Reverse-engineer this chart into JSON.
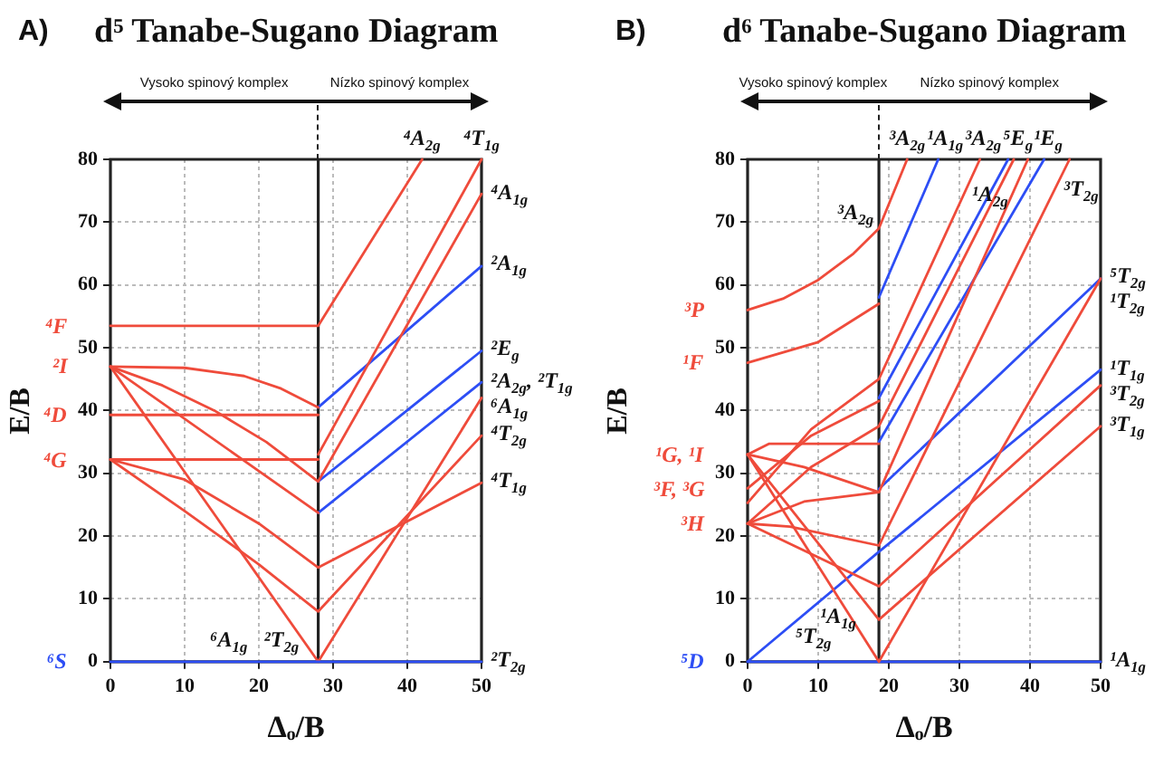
{
  "chart_data": [
    {
      "type": "line",
      "title": "d⁵ Tanabe-Sugano Diagram",
      "xlabel": "Δₒ/B",
      "ylabel": "E/B",
      "xlim": [
        0,
        50
      ],
      "ylim": [
        0,
        80
      ],
      "xticks": [
        0,
        10,
        20,
        30,
        40,
        50
      ],
      "yticks": [
        0,
        10,
        20,
        30,
        40,
        50,
        60,
        70,
        80
      ],
      "grid": true,
      "marker": "none",
      "ref_lines": [
        {
          "axis": "x",
          "value": 28
        }
      ],
      "series": [
        {
          "color": "#ef4b3b",
          "x": [
            0,
            28,
            42
          ],
          "values": [
            53.5,
            53.5,
            80
          ]
        },
        {
          "color": "#ef4b3b",
          "x": [
            0,
            28
          ],
          "values": [
            39.3,
            39.3
          ]
        },
        {
          "color": "#ef4b3b",
          "x": [
            0,
            28
          ],
          "values": [
            32.2,
            32.2
          ]
        },
        {
          "color": "#2d4ef5",
          "x": [
            0,
            50
          ],
          "values": [
            0,
            0
          ]
        },
        {
          "color": "#ef4b3b",
          "x": [
            0,
            10,
            18,
            23,
            28
          ],
          "values": [
            47,
            46.8,
            45.5,
            43.5,
            40.5
          ]
        },
        {
          "color": "#ef4b3b",
          "x": [
            0,
            7,
            14,
            21,
            28,
            50
          ],
          "values": [
            47,
            44,
            40,
            35,
            28.7,
            74.5
          ]
        },
        {
          "color": "#ef4b3b",
          "x": [
            0,
            28
          ],
          "values": [
            47,
            23.7
          ]
        },
        {
          "color": "#ef4b3b",
          "x": [
            0,
            28,
            50
          ],
          "values": [
            47,
            0,
            42
          ]
        },
        {
          "color": "#ef4b3b",
          "x": [
            0,
            10,
            20,
            28,
            50
          ],
          "values": [
            32.2,
            29,
            22,
            15,
            28.5
          ]
        },
        {
          "color": "#ef4b3b",
          "x": [
            0,
            10,
            20,
            28,
            50
          ],
          "values": [
            32.2,
            24,
            15.5,
            8,
            36
          ]
        },
        {
          "color": "#ef4b3b",
          "x": [
            28,
            50
          ],
          "values": [
            33,
            80
          ]
        },
        {
          "color": "#2d4ef5",
          "x": [
            28,
            50
          ],
          "values": [
            40.5,
            63
          ]
        },
        {
          "color": "#2d4ef5",
          "x": [
            28,
            50
          ],
          "values": [
            28.7,
            49.5
          ]
        },
        {
          "color": "#2d4ef5",
          "x": [
            28,
            50
          ],
          "values": [
            23.7,
            44.5
          ]
        }
      ],
      "annotations": [
        "A)",
        "Vysoko spinový komplex",
        "Nízko spinový komplex",
        {
          "text": "⁴A$_{2g}$",
          "x": 42,
          "y": 80
        },
        {
          "text": "⁴T$_{1g}$",
          "x": 50,
          "y": 80
        },
        {
          "text": "⁴A$_{1g}$",
          "x": 50,
          "y": 74.5
        },
        {
          "text": "²A$_{1g}$",
          "x": 50,
          "y": 63
        },
        {
          "text": "²E$_{g}$",
          "x": 50,
          "y": 49.5
        },
        {
          "text": "²A$_{2g}$, ²T$_{1g}$",
          "x": 50,
          "y": 44.5
        },
        {
          "text": "⁶A$_{1g}$",
          "x": 50,
          "y": 42
        },
        {
          "text": "⁴T$_{2g}$",
          "x": 50,
          "y": 36
        },
        {
          "text": "⁴T$_{1g}$",
          "x": 50,
          "y": 28.5
        },
        {
          "text": "²T$_{2g}$",
          "x": 50,
          "y": 0
        },
        {
          "text": "⁴F",
          "x": 0,
          "y": 53.5
        },
        {
          "text": "²I",
          "x": 0,
          "y": 47
        },
        {
          "text": "⁴D",
          "x": 0,
          "y": 39.3
        },
        {
          "text": "⁴G",
          "x": 0,
          "y": 32.2
        },
        {
          "text": "⁶S",
          "x": 0,
          "y": 0
        },
        {
          "text": "⁶A$_{1g}$",
          "x": 16,
          "y": 0
        },
        {
          "text": "²T$_{2g}$",
          "x": 23,
          "y": 0
        }
      ]
    },
    {
      "type": "line",
      "title": "d⁶ Tanabe-Sugano Diagram",
      "xlabel": "Δₒ/B",
      "ylabel": "E/B",
      "xlim": [
        0,
        50
      ],
      "ylim": [
        0,
        80
      ],
      "xticks": [
        0,
        10,
        20,
        30,
        40,
        50
      ],
      "yticks": [
        0,
        10,
        20,
        30,
        40,
        50,
        60,
        70,
        80
      ],
      "grid": true,
      "marker": "none",
      "ref_lines": [
        {
          "axis": "x",
          "value": 18.6
        }
      ],
      "series": [
        {
          "color": "#ef4b3b",
          "x": [
            0,
            5,
            10,
            15,
            18.6,
            22.6
          ],
          "values": [
            56,
            57.8,
            60.8,
            65,
            69,
            80
          ]
        },
        {
          "color": "#ef4b3b",
          "x": [
            0,
            10,
            18.6
          ],
          "values": [
            47.6,
            50.9,
            57
          ]
        },
        {
          "color": "#ef4b3b",
          "x": [
            0,
            3,
            18.6
          ],
          "values": [
            33,
            34.7,
            34.7
          ]
        },
        {
          "color": "#ef4b3b",
          "x": [
            0,
            8,
            18.6
          ],
          "values": [
            33,
            31,
            27
          ]
        },
        {
          "color": "#ef4b3b",
          "x": [
            0,
            18.6,
            50
          ],
          "values": [
            33,
            6.7,
            37.5
          ]
        },
        {
          "color": "#ef4b3b",
          "x": [
            0,
            18.6,
            50
          ],
          "values": [
            33,
            0,
            61
          ]
        },
        {
          "color": "#ef4b3b",
          "x": [
            0,
            9,
            18.6
          ],
          "values": [
            27.6,
            36,
            41.5
          ]
        },
        {
          "color": "#ef4b3b",
          "x": [
            0,
            9,
            18.6,
            32.9
          ],
          "values": [
            25.3,
            37,
            45,
            80
          ]
        },
        {
          "color": "#ef4b3b",
          "x": [
            0,
            9,
            18.6,
            37.7
          ],
          "values": [
            22,
            31,
            37.5,
            80
          ]
        },
        {
          "color": "#ef4b3b",
          "x": [
            0,
            8,
            18.6,
            39.7
          ],
          "values": [
            22,
            25.5,
            27,
            80
          ]
        },
        {
          "color": "#ef4b3b",
          "x": [
            0,
            18.6,
            50
          ],
          "values": [
            22,
            12,
            44
          ]
        },
        {
          "color": "#ef4b3b",
          "x": [
            0,
            6,
            18.6,
            45.6
          ],
          "values": [
            22,
            21.5,
            18.5,
            80
          ]
        },
        {
          "color": "#2d4ef5",
          "x": [
            0,
            18.6,
            50
          ],
          "values": [
            0,
            17.5,
            46.5
          ]
        },
        {
          "color": "#2d4ef5",
          "x": [
            18.6,
            27
          ],
          "values": [
            58,
            80
          ]
        },
        {
          "color": "#2d4ef5",
          "x": [
            18.6,
            36.9
          ],
          "values": [
            42,
            80
          ]
        },
        {
          "color": "#2d4ef5",
          "x": [
            18.6,
            42
          ],
          "values": [
            35,
            80
          ]
        },
        {
          "color": "#2d4ef5",
          "x": [
            18.6,
            50
          ],
          "values": [
            27.5,
            61
          ]
        },
        {
          "color": "#2d4ef5",
          "x": [
            0,
            50
          ],
          "values": [
            0,
            0
          ]
        }
      ],
      "annotations": [
        "B)",
        "Vysoko spinový komplex",
        "Nízko spinový komplex",
        {
          "text": "³A$_{2g}$",
          "x": 22.6,
          "y": 80
        },
        {
          "text": "¹A$_{1g}$",
          "x": 27,
          "y": 80
        },
        {
          "text": "³A$_{2g}$",
          "x": 32.9,
          "y": 80
        },
        {
          "text": "⁵E$_{g}$",
          "x": 37.7,
          "y": 80
        },
        {
          "text": "¹E$_{g}$",
          "x": 42,
          "y": 80
        },
        {
          "text": "¹A$_{2g}$",
          "x": 31.5,
          "y": 76.6
        },
        {
          "text": "³T$_{2g}$",
          "x": 44.5,
          "y": 77.5
        },
        {
          "text": "³A$_{2g}$",
          "x": 18.6,
          "y": 69
        },
        {
          "text": "¹A$_{1g}$",
          "x": 10,
          "y": 9.4
        },
        {
          "text": "⁵T$_{2g}$",
          "x": 6.5,
          "y": 6.1
        },
        {
          "text": "⁵T$_{2g}$",
          "x": 50,
          "y": 61
        },
        {
          "text": "¹T$_{2g}$",
          "x": 50,
          "y": 61
        },
        {
          "text": "¹T$_{1g}$",
          "x": 50,
          "y": 46.5
        },
        {
          "text": "³T$_{2g}$",
          "x": 50,
          "y": 44
        },
        {
          "text": "³T$_{1g}$",
          "x": 50,
          "y": 37.5
        },
        {
          "text": "¹A$_{1g}$",
          "x": 50,
          "y": 0
        },
        {
          "text": "³P",
          "x": 0,
          "y": 56
        },
        {
          "text": "¹F",
          "x": 0,
          "y": 47.6
        },
        {
          "text": "¹G, ¹I",
          "x": 0,
          "y": 33
        },
        {
          "text": "³F, ³G",
          "x": 0,
          "y": 27.6
        },
        {
          "text": "³H",
          "x": 0,
          "y": 22
        },
        {
          "text": "⁵D",
          "x": 0,
          "y": 0
        }
      ]
    }
  ]
}
